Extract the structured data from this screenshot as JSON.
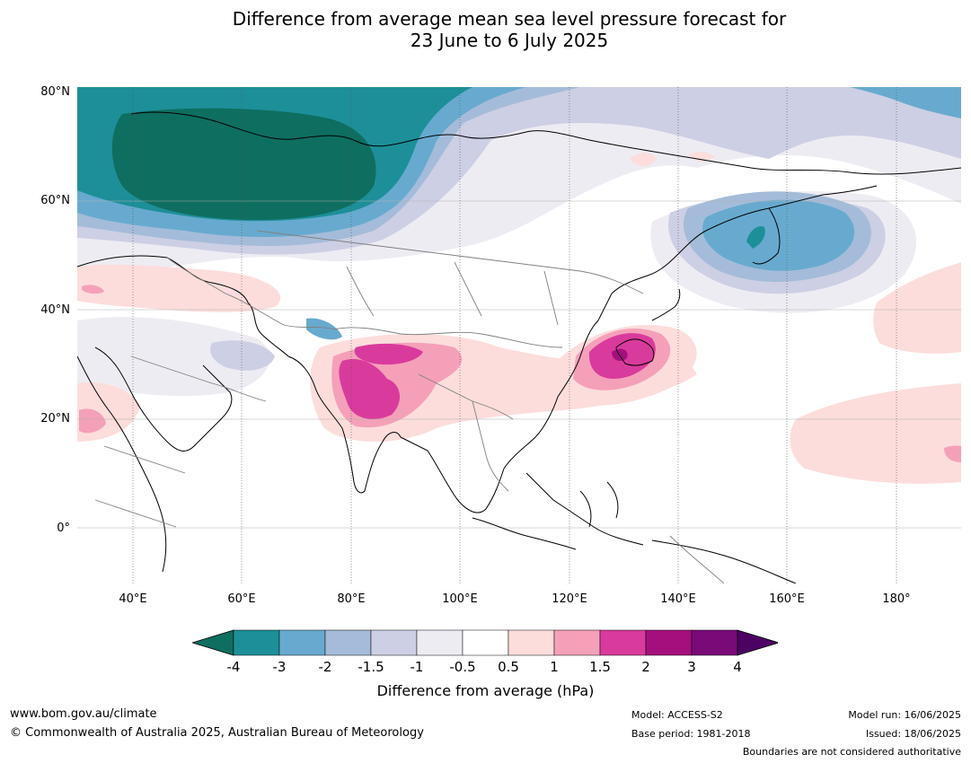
{
  "title_line1": "Difference from average mean sea level pressure forecast for",
  "title_line2": "23 June to 6 July 2025",
  "lat_labels": [
    "80°N",
    "60°N",
    "40°N",
    "20°N",
    "0°"
  ],
  "lon_labels": [
    "40°E",
    "60°E",
    "80°E",
    "100°E",
    "120°E",
    "140°E",
    "160°E",
    "180°"
  ],
  "colorbar": {
    "ticks": [
      "-4",
      "-3",
      "-2",
      "-1.5",
      "-1",
      "-0.5",
      "0.5",
      "1",
      "1.5",
      "2",
      "3",
      "4"
    ],
    "colors": [
      "#0e6e60",
      "#1d8f98",
      "#68aacf",
      "#a4bcd9",
      "#cdcfe4",
      "#eeecf3",
      "#ffffff",
      "#fcdddc",
      "#f5a0b9",
      "#d93b9c",
      "#a50f7d",
      "#790a78",
      "#4c0263"
    ],
    "label": "Difference from average (hPa)"
  },
  "footer": {
    "url": "www.bom.gov.au/climate",
    "copyright": "© Commonwealth of Australia 2025, Australian Bureau of Meteorology",
    "model": "Model: ACCESS-S2",
    "base_period": "Base period: 1981-2018",
    "model_run": "Model run: 16/06/2025",
    "issued": "Issued: 18/06/2025",
    "disclaimer": "Boundaries are not considered authoritative"
  }
}
